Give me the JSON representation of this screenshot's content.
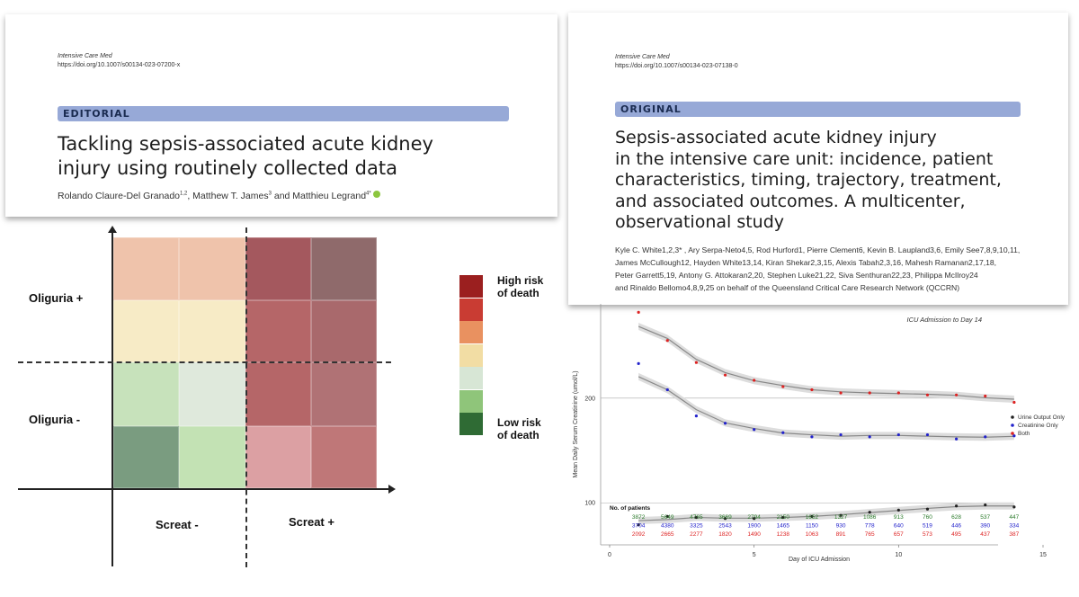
{
  "editorial": {
    "journal": "Intensive Care Med",
    "doi": "https://doi.org/10.1007/s00134-023-07200-x",
    "banner": "EDITORIAL",
    "title_line1": "Tackling sepsis-associated acute kidney",
    "title_line2": "injury using routinely collected data",
    "authors_text": "Rolando Claure-Del Granado",
    "sup1": "1,2",
    "authors_text2": ", Matthew T. James",
    "sup2": "3",
    "authors_text3": " and Matthieu Legrand",
    "sup3": "4*"
  },
  "original": {
    "journal": "Intensive Care Med",
    "doi": "https://doi.org/10.1007/s00134-023-07138-0",
    "banner": "ORIGINAL",
    "title_lines": [
      "Sepsis-associated acute kidney injury",
      "in the intensive care unit: incidence, patient",
      "characteristics, timing, trajectory, treatment,",
      "and associated outcomes. A multicenter,",
      "observational study"
    ],
    "author_lines": [
      "Kyle C. White1,2,3* , Ary Serpa-Neto4,5, Rod Hurford1, Pierre Clement6, Kevin B. Laupland3,6, Emily See7,8,9,10,11,",
      "James McCullough12, Hayden White13,14, Kiran Shekar2,3,15, Alexis Tabah2,3,16, Mahesh Ramanan2,17,18,",
      "Peter Garrett5,19, Antony G. Attokaran2,20, Stephen Luke21,22, Siva Senthuran22,23, Philippa McIlroy24",
      "and Rinaldo Bellomo4,8,9,25 on behalf of the Queensland Critical Care Research Network (QCCRN)"
    ]
  },
  "risk_grid": {
    "row_labels": [
      "Oliguria +",
      "Oliguria  -"
    ],
    "col_labels": [
      "Screat -",
      "Screat +"
    ],
    "legend_top": "High risk of death",
    "legend_top_l1": "High risk",
    "legend_top_l2": "of death",
    "legend_bottom_l1": "Low risk",
    "legend_bottom_l2": "of death",
    "legend_colors": [
      "#9b1f1f",
      "#c93c33",
      "#e99160",
      "#f2dda4",
      "#d7e6d5",
      "#8fc57a",
      "#2f6b34"
    ],
    "cell_colors": [
      [
        "#efc3ab",
        "#efc3ab",
        "#a4585e",
        "#8f6a6b"
      ],
      [
        "#f7ebc6",
        "#f7ebc6",
        "#b56668",
        "#a9696c"
      ],
      [
        "#c7e2bb",
        "#dfe9dc",
        "#b56668",
        "#b07275"
      ],
      [
        "#7a9c80",
        "#c3e2b4",
        "#dca0a3",
        "#bf7778"
      ]
    ]
  },
  "chart_data": {
    "type": "line",
    "title": "ICU Admission to Day 14",
    "xlabel": "Day of ICU Admission",
    "ylabel": "Mean Daily Serum Creatinine (umol/L)",
    "xlim": [
      0,
      15
    ],
    "xticks": [
      0,
      5,
      10,
      15
    ],
    "yticks": [
      100,
      200
    ],
    "ylim": [
      65,
      290
    ],
    "x": [
      1,
      2,
      3,
      4,
      5,
      6,
      7,
      8,
      9,
      10,
      11,
      12,
      13,
      14
    ],
    "series": [
      {
        "name": "Urine Output Only",
        "color": "#222222",
        "values": [
          79,
          87,
          86,
          85,
          85,
          86,
          87,
          88,
          91,
          93,
          94,
          97,
          98,
          96
        ]
      },
      {
        "name": "Creatinine Only",
        "color": "#2222cc",
        "values": [
          233,
          208,
          183,
          176,
          170,
          167,
          163,
          165,
          163,
          165,
          165,
          161,
          163,
          164
        ]
      },
      {
        "name": "Both",
        "color": "#dd2222",
        "values": [
          282,
          255,
          234,
          222,
          217,
          211,
          208,
          205,
          205,
          205,
          203,
          203,
          202,
          196
        ]
      }
    ],
    "patients_header": "No. of patients",
    "patients": [
      {
        "color": "#2a7a2a",
        "counts": [
          "3872",
          "5649",
          "4765",
          "3669",
          "2794",
          "2150",
          "1652",
          "1327",
          "1086",
          "913",
          "760",
          "628",
          "537",
          "447"
        ]
      },
      {
        "color": "#2222cc",
        "counts": [
          "3704",
          "4380",
          "3325",
          "2543",
          "1900",
          "1465",
          "1150",
          "930",
          "778",
          "640",
          "519",
          "446",
          "390",
          "334"
        ]
      },
      {
        "color": "#dd2222",
        "counts": [
          "2092",
          "2665",
          "2277",
          "1820",
          "1490",
          "1238",
          "1063",
          "891",
          "765",
          "657",
          "573",
          "495",
          "437",
          "387"
        ]
      }
    ],
    "legend_position": "right"
  }
}
